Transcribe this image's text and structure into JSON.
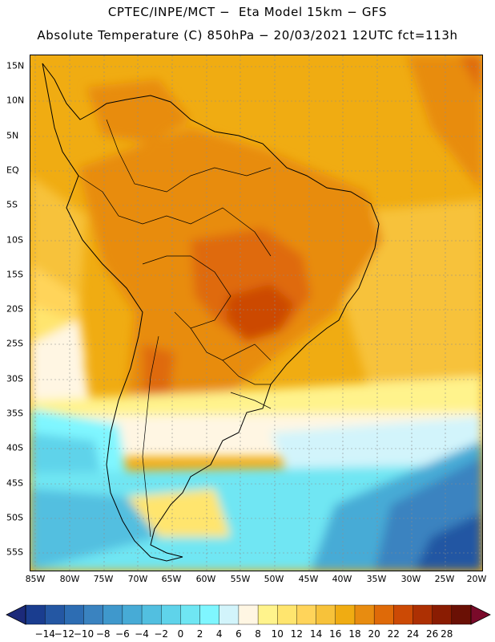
{
  "title_line1": "CPTEC/INPE/MCT −  Eta Model 15km − GFS",
  "title_line2": "Absolute Temperature (C) 850hPa − 20/03/2021 12UTC fct=113h",
  "map": {
    "variable": "Absolute Temperature",
    "units": "C",
    "level": "850hPa",
    "lat_labels": [
      "15N",
      "10N",
      "5N",
      "EQ",
      "5S",
      "10S",
      "15S",
      "20S",
      "25S",
      "30S",
      "35S",
      "40S",
      "45S",
      "50S",
      "55S"
    ],
    "lon_labels": [
      "85W",
      "80W",
      "75W",
      "70W",
      "65W",
      "60W",
      "55W",
      "50W",
      "45W",
      "40W",
      "35W",
      "30W",
      "25W",
      "20W"
    ]
  },
  "colorbar": {
    "labels": [
      "−14",
      "−12",
      "−10",
      "−8",
      "−6",
      "−4",
      "−2",
      "0",
      "2",
      "4",
      "6",
      "8",
      "10",
      "12",
      "14",
      "16",
      "18",
      "20",
      "22",
      "24",
      "26",
      "28"
    ],
    "colors": [
      "#1a3d8f",
      "#2457a3",
      "#2d6db3",
      "#3a83c0",
      "#3f98cc",
      "#47abd6",
      "#52bfe0",
      "#5fd3ea",
      "#6fe6f3",
      "#7ff6ff",
      "#d2f4fb",
      "#fff6e3",
      "#fff38c",
      "#ffe56e",
      "#ffd45a",
      "#f7c23a",
      "#f0ac12",
      "#e88c10",
      "#df6a08",
      "#cc4a05",
      "#ad3003",
      "#8a1c02",
      "#6a1005"
    ],
    "low_arrow_color": "#1c2a7a",
    "high_arrow_color": "#7a0a2a"
  }
}
